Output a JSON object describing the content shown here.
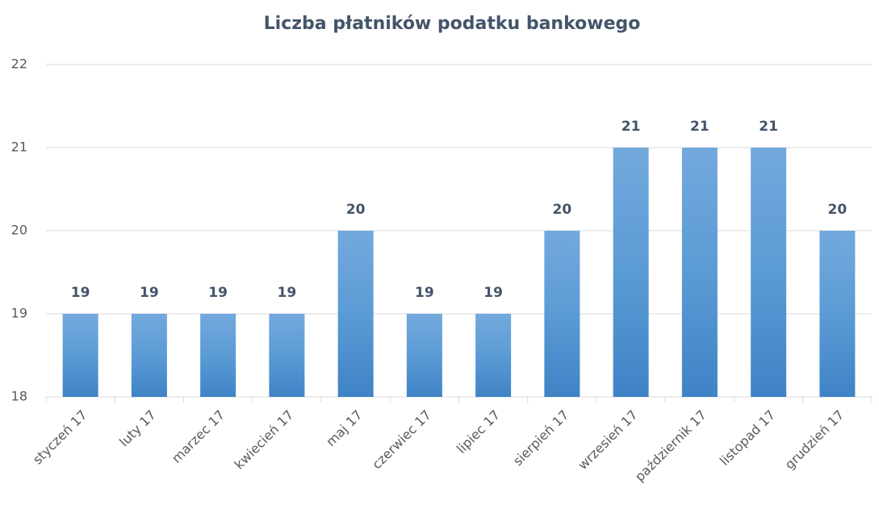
{
  "chart_data": {
    "type": "bar",
    "title": "Liczba płatników podatku bankowego",
    "categories": [
      "styczeń 17",
      "luty 17",
      "marzec 17",
      "kwiecień 17",
      "maj 17",
      "czerwiec 17",
      "lipiec 17",
      "sierpień 17",
      "wrzesień 17",
      "październik 17",
      "listopad 17",
      "grudzień 17"
    ],
    "values": [
      19,
      19,
      19,
      19,
      20,
      19,
      19,
      20,
      21,
      21,
      21,
      20
    ],
    "color": "#5b9bd5",
    "ylim": [
      18,
      22
    ],
    "yticks": [
      18,
      19,
      20,
      21,
      22
    ],
    "grid": true
  }
}
